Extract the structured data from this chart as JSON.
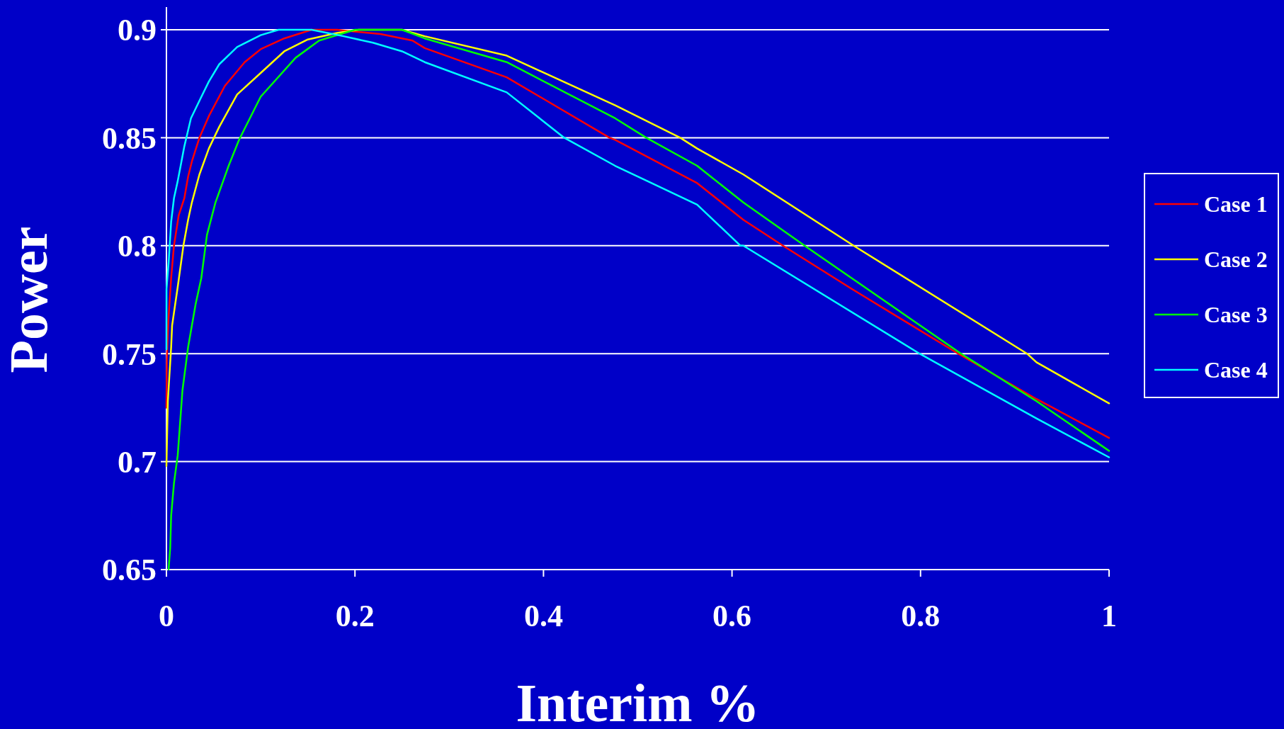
{
  "chart_data": {
    "type": "line",
    "xlabel": "Interim %",
    "ylabel": "Power",
    "xlim": [
      0,
      1
    ],
    "ylim": [
      0.65,
      0.9
    ],
    "xticks": [
      0,
      0.2,
      0.4,
      0.6,
      0.8,
      1
    ],
    "yticks": [
      0.65,
      0.7,
      0.75,
      0.8,
      0.85,
      0.9
    ],
    "grid": "y",
    "legend": "right",
    "marker": "none",
    "line_style": "solid",
    "series": [
      {
        "name": "Case 1",
        "color": "#ff0000",
        "x": [
          0,
          0.0004,
          0.002,
          0.005,
          0.008,
          0.013,
          0.019,
          0.023,
          0.027,
          0.035,
          0.045,
          0.062,
          0.083,
          0.1,
          0.125,
          0.154,
          0.181,
          0.227,
          0.261,
          0.274,
          0.361,
          0.47,
          0.476,
          0.563,
          0.612,
          0.654,
          0.727,
          0.84,
          0.923,
          1
        ],
        "values": [
          0.725,
          0.747,
          0.765,
          0.785,
          0.8,
          0.814,
          0.822,
          0.832,
          0.839,
          0.85,
          0.86,
          0.874,
          0.885,
          0.891,
          0.896,
          0.9,
          0.9,
          0.898,
          0.895,
          0.8915,
          0.878,
          0.85,
          0.849,
          0.829,
          0.812,
          0.8,
          0.78,
          0.75,
          0.729,
          0.711
        ]
      },
      {
        "name": "Case 2",
        "color": "#ffff00",
        "x": [
          0,
          0.0015,
          0.005,
          0.006,
          0.012,
          0.018,
          0.023,
          0.027,
          0.035,
          0.045,
          0.056,
          0.075,
          0.1,
          0.125,
          0.15,
          0.181,
          0.204,
          0.25,
          0.274,
          0.361,
          0.476,
          0.545,
          0.563,
          0.612,
          0.729,
          0.913,
          0.923,
          1
        ],
        "values": [
          0.698,
          0.728,
          0.753,
          0.763,
          0.781,
          0.8,
          0.812,
          0.82,
          0.833,
          0.845,
          0.855,
          0.87,
          0.88,
          0.89,
          0.8955,
          0.8985,
          0.9,
          0.9,
          0.897,
          0.888,
          0.865,
          0.85,
          0.845,
          0.833,
          0.8,
          0.75,
          0.746,
          0.727
        ]
      },
      {
        "name": "Case 3",
        "color": "#00ff00",
        "x": [
          0.0023,
          0.004,
          0.005,
          0.008,
          0.012,
          0.017,
          0.023,
          0.027,
          0.031,
          0.037,
          0.043,
          0.052,
          0.066,
          0.077,
          0.1,
          0.137,
          0.162,
          0.2,
          0.25,
          0.274,
          0.361,
          0.476,
          0.509,
          0.563,
          0.612,
          0.677,
          0.843,
          0.923,
          1
        ],
        "values": [
          0.65,
          0.66,
          0.675,
          0.69,
          0.703,
          0.733,
          0.753,
          0.763,
          0.773,
          0.785,
          0.805,
          0.82,
          0.837,
          0.849,
          0.869,
          0.887,
          0.895,
          0.9,
          0.9,
          0.896,
          0.885,
          0.859,
          0.85,
          0.837,
          0.82,
          0.8,
          0.75,
          0.728,
          0.705
        ]
      },
      {
        "name": "Case 4",
        "color": "#00ffff",
        "x": [
          0,
          0.0001,
          0.0023,
          0.005,
          0.008,
          0.012,
          0.019,
          0.026,
          0.036,
          0.045,
          0.056,
          0.075,
          0.1,
          0.119,
          0.154,
          0.188,
          0.219,
          0.25,
          0.274,
          0.361,
          0.422,
          0.476,
          0.563,
          0.609,
          0.612,
          0.799,
          0.923,
          1
        ],
        "values": [
          0.752,
          0.78,
          0.792,
          0.811,
          0.822,
          0.83,
          0.846,
          0.859,
          0.868,
          0.876,
          0.884,
          0.892,
          0.8975,
          0.9,
          0.9,
          0.897,
          0.894,
          0.89,
          0.885,
          0.871,
          0.85,
          0.837,
          0.819,
          0.8,
          0.8,
          0.75,
          0.72,
          0.702
        ]
      }
    ]
  }
}
